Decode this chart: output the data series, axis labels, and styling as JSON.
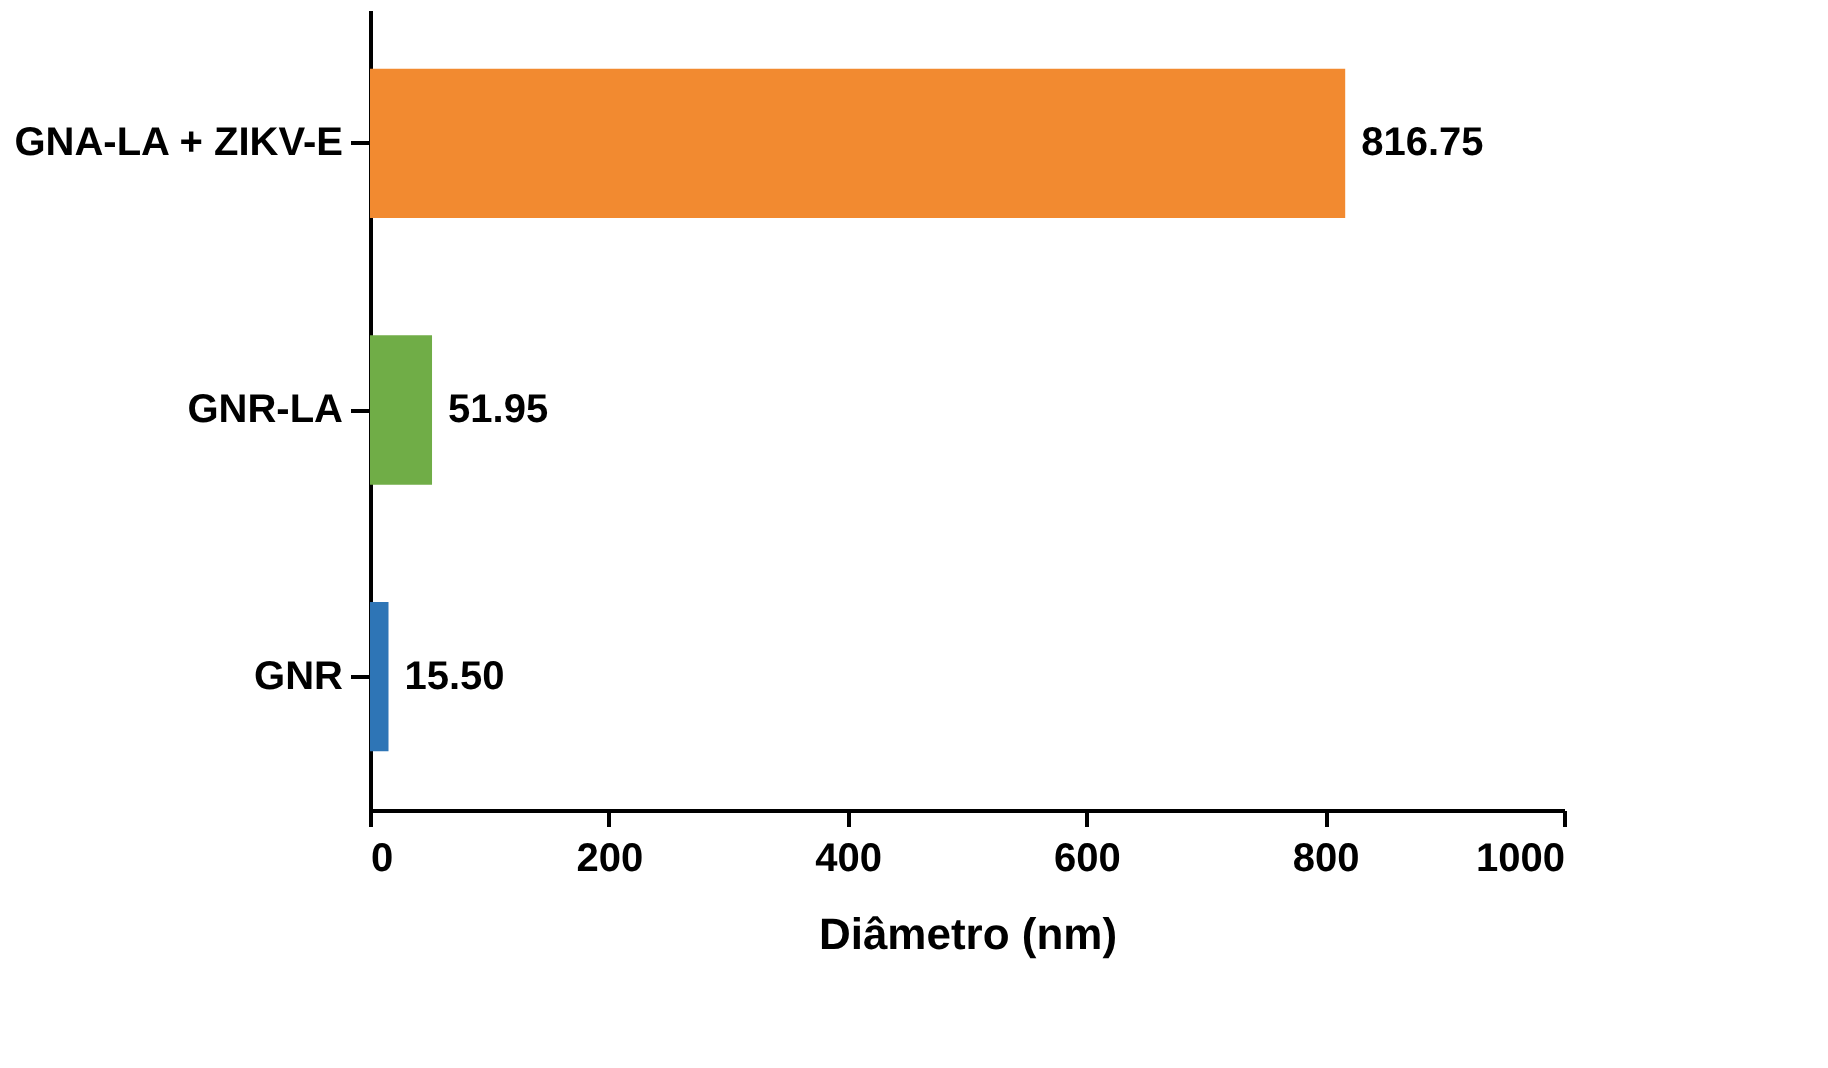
{
  "chart_data": {
    "type": "bar",
    "orientation": "horizontal",
    "xlabel": "Diâmetro (nm)",
    "categories": [
      "GNA-LA + ZIKV-E",
      "GNR-LA",
      "GNR"
    ],
    "values": [
      816.75,
      51.95,
      15.5
    ],
    "value_labels": [
      "816.75",
      "51.95",
      "15.50"
    ],
    "colors": [
      "#f28a30",
      "#70ad47",
      "#2e75b6"
    ],
    "xlim": [
      0,
      1000
    ],
    "xticks": [
      0,
      200,
      400,
      600,
      800,
      1000
    ],
    "grid": false
  }
}
